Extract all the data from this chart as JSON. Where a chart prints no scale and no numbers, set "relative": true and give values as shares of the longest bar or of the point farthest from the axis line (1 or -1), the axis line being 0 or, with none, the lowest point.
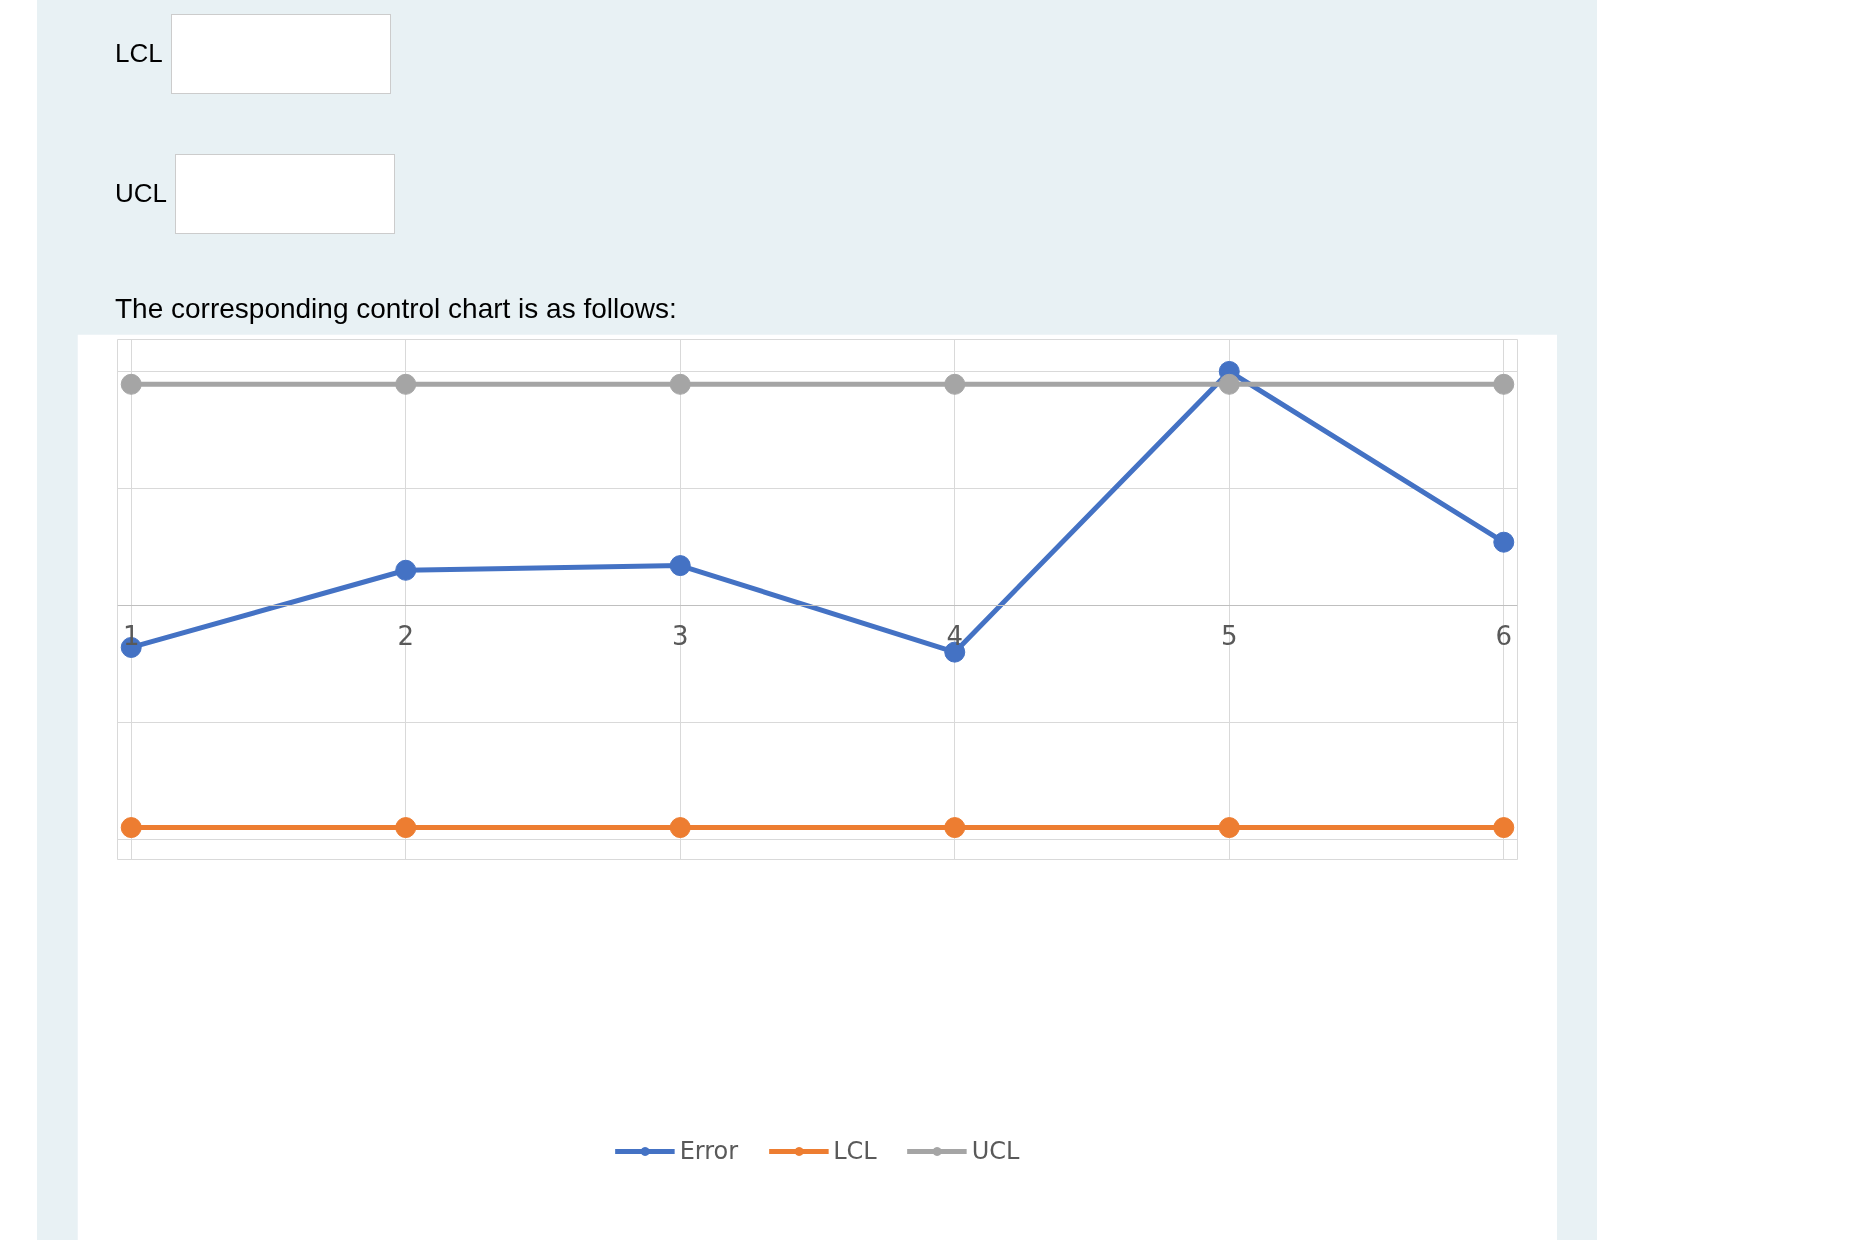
{
  "chart_data": {
    "type": "line",
    "title": "The corresponding control chart is as follows:",
    "annotations": [
      "LCL",
      "UCL"
    ],
    "categories": [
      "1",
      "2",
      "3",
      "4",
      "5",
      "6"
    ],
    "relative": true,
    "series": [
      {
        "name": "Error",
        "color": "#4472c4",
        "values": [
          -0.18,
          0.15,
          0.17,
          -0.2,
          1,
          0.27
        ]
      },
      {
        "name": "LCL",
        "color": "#ed7d31",
        "values": [
          -0.95,
          -0.95,
          -0.95,
          -0.95,
          -0.95,
          -0.95
        ]
      },
      {
        "name": "UCL",
        "color": "#a5a5a5",
        "values": [
          0.945,
          0.945,
          0.945,
          0.945,
          0.945,
          0.945
        ]
      }
    ],
    "legend": "bottom",
    "grid": true,
    "marker": "circle",
    "line_style": "solid"
  }
}
